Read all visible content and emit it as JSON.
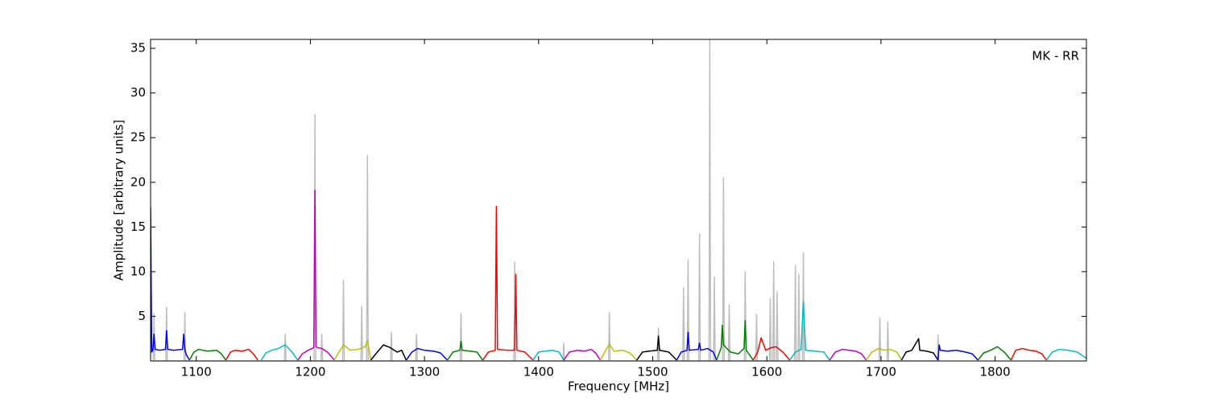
{
  "chart_data": {
    "type": "line",
    "annotation": "MK - RR",
    "x_label": "Frequency [MHz]",
    "y_label": "Amplitude [arbitrary units]",
    "xlim": [
      1060,
      1880
    ],
    "ylim": [
      0,
      36
    ],
    "xticks": [
      1100,
      1200,
      1300,
      1400,
      1500,
      1600,
      1700,
      1800
    ],
    "yticks": [
      5,
      10,
      15,
      20,
      25,
      30,
      35
    ],
    "grid": false,
    "series": [
      {
        "color": "#bebebe",
        "x": [
          1062.3,
          1063,
          1063.7,
          1073.3,
          1074,
          1074.7,
          1089.3,
          1090,
          1090.7,
          1177.3,
          1178,
          1178.7,
          1203.3,
          1204,
          1204.7,
          1209.3,
          1210,
          1210.7,
          1228.3,
          1229,
          1229.7,
          1244.3,
          1245,
          1245.7,
          1249.3,
          1250,
          1250.7,
          1270.3,
          1271,
          1271.7,
          1292.3,
          1293,
          1293.7,
          1331.3,
          1332,
          1332.7,
          1378.3,
          1379,
          1379.7,
          1421.3,
          1422,
          1422.7,
          1461.3,
          1462,
          1462.7,
          1504.3,
          1505,
          1505.7,
          1526.3,
          1527,
          1527.7,
          1530.3,
          1531,
          1531.7,
          1540.3,
          1541,
          1541.7,
          1549.3,
          1550,
          1550.7,
          1553.3,
          1554,
          1554.7,
          1561.3,
          1562,
          1562.7,
          1566.3,
          1567,
          1567.7,
          1580.3,
          1581,
          1581.7,
          1590.3,
          1591,
          1591.7,
          1602.3,
          1603,
          1603.7,
          1605.3,
          1606,
          1606.7,
          1608.3,
          1609,
          1609.7,
          1624.3,
          1625,
          1625.7,
          1627.3,
          1628,
          1628.7,
          1631.3,
          1632,
          1632.7,
          1698.3,
          1699,
          1699.7,
          1705.3,
          1706,
          1706.7,
          1749.3,
          1750,
          1750.7
        ],
        "values": [
          0,
          5.3,
          0,
          0,
          6.0,
          0,
          0,
          5.4,
          0,
          0,
          3.0,
          0,
          0,
          27.6,
          0,
          0,
          3.0,
          0,
          0,
          9.0,
          0,
          0,
          6.1,
          0,
          0,
          23.0,
          0,
          0,
          3.2,
          0,
          0,
          3.0,
          0,
          0,
          5.3,
          0,
          0,
          11.1,
          0,
          0,
          2.0,
          0,
          0,
          5.4,
          0,
          0,
          3.7,
          0,
          0,
          8.2,
          0,
          0,
          11.3,
          0,
          0,
          14.2,
          0,
          0,
          36,
          0,
          0,
          9.4,
          0,
          0,
          20.5,
          0,
          0,
          6.3,
          0,
          0,
          10.0,
          0,
          0,
          5.2,
          0,
          0,
          7.0,
          0,
          0,
          11.1,
          0,
          0,
          7.7,
          0,
          0,
          10.7,
          0,
          0,
          9.7,
          0,
          0,
          12.1,
          0,
          0,
          4.8,
          0,
          0,
          4.4,
          0,
          0,
          2.9,
          0
        ]
      },
      {
        "color": "#0000ff",
        "x": [
          1060,
          1061,
          1062,
          1063,
          1064,
          1068,
          1073,
          1074,
          1075,
          1080,
          1088,
          1089,
          1090,
          1091,
          1094
        ],
        "values": [
          17.2,
          1,
          1.2,
          3.0,
          1.3,
          1.2,
          1.3,
          3.4,
          1.3,
          1.2,
          1.3,
          3.0,
          1.3,
          0.8,
          0.1
        ]
      },
      {
        "color": "#008000",
        "x": [
          1094,
          1098,
          1102,
          1110,
          1118,
          1122,
          1126
        ],
        "values": [
          0.1,
          1.0,
          1.3,
          1.1,
          1.2,
          0.8,
          0.1
        ]
      },
      {
        "color": "#ff0000",
        "x": [
          1126,
          1130,
          1134,
          1140,
          1146,
          1150,
          1154
        ],
        "values": [
          0.1,
          1.0,
          1.2,
          1.1,
          1.3,
          0.8,
          0.1
        ]
      },
      {
        "color": "#00bfbf",
        "x": [
          1157,
          1161,
          1166,
          1172,
          1178,
          1184,
          1189
        ],
        "values": [
          0.1,
          0.9,
          1.2,
          1.4,
          1.8,
          1.0,
          0.1
        ]
      },
      {
        "color": "#bf00bf",
        "x": [
          1189,
          1193,
          1198,
          1203,
          1204,
          1205,
          1206,
          1210,
          1215,
          1221
        ],
        "values": [
          0.1,
          0.8,
          1.2,
          1.5,
          19.1,
          1.6,
          1.5,
          1.4,
          1.0,
          0.1
        ]
      },
      {
        "color": "#bfbf00",
        "x": [
          1221,
          1225,
          1229,
          1235,
          1242,
          1248,
          1250,
          1253
        ],
        "values": [
          0.1,
          1.0,
          1.8,
          1.2,
          1.3,
          1.6,
          2.3,
          0.1
        ]
      },
      {
        "color": "#000000",
        "x": [
          1253,
          1258,
          1264,
          1270,
          1276,
          1280,
          1284
        ],
        "values": [
          0.1,
          0.9,
          1.8,
          1.5,
          1.0,
          1.2,
          0.1
        ]
      },
      {
        "color": "#0000ff",
        "x": [
          1284,
          1289,
          1294,
          1300,
          1308,
          1314,
          1320
        ],
        "values": [
          0.1,
          1.0,
          1.4,
          1.2,
          1.1,
          0.9,
          0.1
        ]
      },
      {
        "color": "#008000",
        "x": [
          1320,
          1325,
          1331,
          1332,
          1333,
          1340,
          1346,
          1351
        ],
        "values": [
          0.1,
          1.0,
          1.2,
          2.2,
          1.2,
          1.1,
          1.0,
          0.1
        ]
      },
      {
        "color": "#ff0000",
        "x": [
          1351,
          1356,
          1362,
          1363,
          1364,
          1372,
          1379,
          1380,
          1381,
          1388,
          1395
        ],
        "values": [
          0.1,
          1.0,
          1.2,
          17.3,
          1.3,
          1.2,
          1.2,
          9.7,
          1.2,
          1.0,
          0.1
        ]
      },
      {
        "color": "#00bfbf",
        "x": [
          1395,
          1400,
          1406,
          1412,
          1418,
          1422
        ],
        "values": [
          0.1,
          1.0,
          1.1,
          1.2,
          1.0,
          0.1
        ]
      },
      {
        "color": "#bf00bf",
        "x": [
          1422,
          1427,
          1434,
          1440,
          1446,
          1450,
          1454
        ],
        "values": [
          0.1,
          1.0,
          1.2,
          1.1,
          1.3,
          0.9,
          0.1
        ]
      },
      {
        "color": "#bfbf00",
        "x": [
          1454,
          1458,
          1462,
          1466,
          1474,
          1480,
          1486
        ],
        "values": [
          0.1,
          1.0,
          1.9,
          1.1,
          1.2,
          0.9,
          0.1
        ]
      },
      {
        "color": "#000000",
        "x": [
          1486,
          1491,
          1497,
          1504,
          1505,
          1506,
          1514,
          1521
        ],
        "values": [
          0.1,
          1.0,
          1.1,
          1.2,
          2.8,
          1.2,
          1.0,
          0.1
        ]
      },
      {
        "color": "#0000ff",
        "x": [
          1521,
          1525,
          1530,
          1531,
          1532,
          1540,
          1541,
          1542,
          1548,
          1553,
          1556
        ],
        "values": [
          0.1,
          1.0,
          1.2,
          3.2,
          1.2,
          1.3,
          2.0,
          1.2,
          1.4,
          1.0,
          0.1
        ]
      },
      {
        "color": "#008000",
        "x": [
          1556,
          1560,
          1561,
          1562,
          1568,
          1575,
          1580,
          1581,
          1582,
          1588
        ],
        "values": [
          0.1,
          1.5,
          4.0,
          1.8,
          1.0,
          0.8,
          1.4,
          4.5,
          1.2,
          0.1
        ]
      },
      {
        "color": "#ff0000",
        "x": [
          1588,
          1592,
          1595,
          1599,
          1604,
          1608,
          1614,
          1620
        ],
        "values": [
          0.1,
          1.0,
          2.6,
          1.2,
          1.5,
          1.6,
          1.0,
          0.1
        ]
      },
      {
        "color": "#00bfbf",
        "x": [
          1620,
          1625,
          1630,
          1632,
          1634,
          1642,
          1650,
          1655
        ],
        "values": [
          0.1,
          1.0,
          1.3,
          6.6,
          1.2,
          1.1,
          1.0,
          0.1
        ]
      },
      {
        "color": "#bf00bf",
        "x": [
          1655,
          1660,
          1666,
          1672,
          1678,
          1683,
          1687
        ],
        "values": [
          0.1,
          1.0,
          1.3,
          1.2,
          1.1,
          0.8,
          0.1
        ]
      },
      {
        "color": "#bfbf00",
        "x": [
          1687,
          1692,
          1698,
          1703,
          1708,
          1714,
          1718
        ],
        "values": [
          0.1,
          1.0,
          1.4,
          1.2,
          1.3,
          1.0,
          0.1
        ]
      },
      {
        "color": "#000000",
        "x": [
          1718,
          1722,
          1727,
          1733,
          1734,
          1740,
          1746,
          1750
        ],
        "values": [
          0.1,
          1.0,
          1.2,
          2.5,
          1.2,
          1.1,
          0.9,
          0.1
        ]
      },
      {
        "color": "#0000ff",
        "x": [
          1750,
          1751,
          1752,
          1758,
          1766,
          1774,
          1780,
          1785
        ],
        "values": [
          0.1,
          1.8,
          1.2,
          1.1,
          1.2,
          1.0,
          0.8,
          0.1
        ]
      },
      {
        "color": "#008000",
        "x": [
          1785,
          1790,
          1796,
          1802,
          1808,
          1814
        ],
        "values": [
          0.1,
          0.9,
          1.2,
          1.6,
          1.0,
          0.1
        ]
      },
      {
        "color": "#ff0000",
        "x": [
          1814,
          1818,
          1824,
          1830,
          1836,
          1841,
          1845
        ],
        "values": [
          0.1,
          1.2,
          1.4,
          1.2,
          1.1,
          0.8,
          0.1
        ]
      },
      {
        "color": "#00bfbf",
        "x": [
          1845,
          1850,
          1856,
          1864,
          1872,
          1880
        ],
        "values": [
          0.1,
          1.0,
          1.3,
          1.2,
          1.0,
          0.3
        ]
      }
    ]
  }
}
